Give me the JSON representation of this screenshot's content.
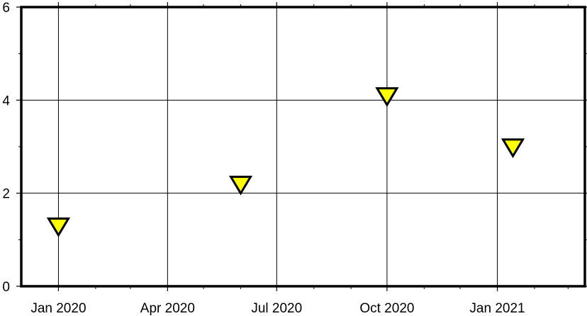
{
  "chart_data": {
    "type": "scatter",
    "title": "",
    "xlabel": "",
    "ylabel": "",
    "x_axis_kind": "date",
    "xlim": [
      "2019-12-01",
      "2021-03-15"
    ],
    "ylim": [
      0,
      6
    ],
    "x_major_ticks": [
      "2020-01-01",
      "2020-04-01",
      "2020-07-01",
      "2020-10-01",
      "2021-01-01"
    ],
    "x_tick_labels": [
      "Jan 2020",
      "Apr 2020",
      "Jul 2020",
      "Oct 2020",
      "Jan 2021"
    ],
    "x_minor_ticks": [
      "2020-02-01",
      "2020-03-01",
      "2020-05-01",
      "2020-06-01",
      "2020-08-01",
      "2020-09-01",
      "2020-11-01",
      "2020-12-01",
      "2021-02-01",
      "2021-03-01"
    ],
    "y_major_ticks": [
      0,
      2,
      4,
      6
    ],
    "y_tick_labels": [
      "0",
      "2",
      "4",
      "6"
    ],
    "y_minor_ticks": [
      1,
      3,
      5
    ],
    "grid": true,
    "marker": "inverted-triangle",
    "marker_fill": "#ffff00",
    "marker_edge": "#000000",
    "points": [
      {
        "x": "2020-01-01",
        "y": 1.3
      },
      {
        "x": "2020-06-01",
        "y": 2.2
      },
      {
        "x": "2020-10-01",
        "y": 4.1
      },
      {
        "x": "2021-01-14",
        "y": 3.0
      }
    ]
  }
}
